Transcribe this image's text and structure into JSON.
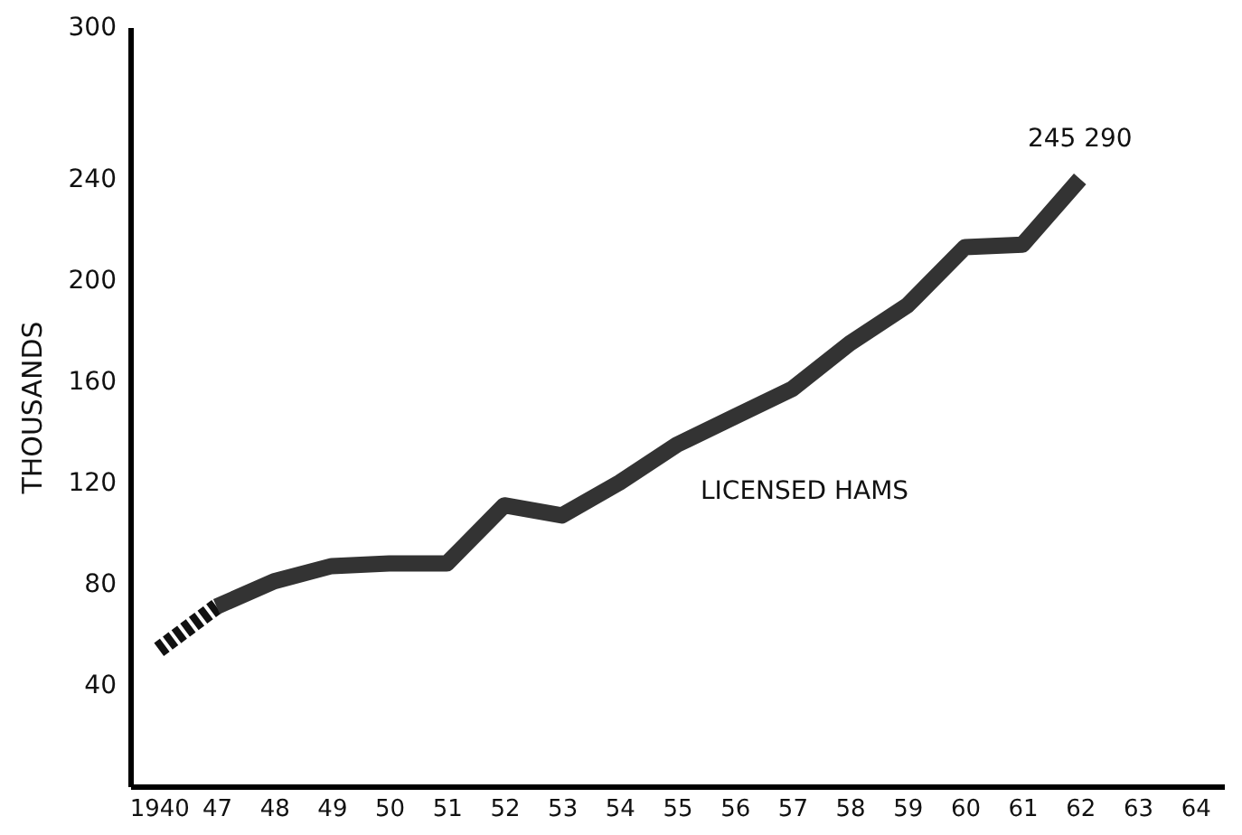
{
  "chart_data": {
    "type": "line",
    "ylabel": "THOUSANDS",
    "categories": [
      "1940",
      "47",
      "48",
      "49",
      "50",
      "51",
      "52",
      "53",
      "54",
      "55",
      "56",
      "57",
      "58",
      "59",
      "60",
      "61",
      "62",
      "63",
      "64"
    ],
    "series": [
      {
        "color": "#111111",
        "line_style": "dashed",
        "values": [
          54,
          71,
          null,
          null,
          null,
          null,
          null,
          null,
          null,
          null,
          null,
          null,
          null,
          null,
          null,
          null,
          null,
          null,
          null
        ]
      },
      {
        "name": "LICENSED HAMS",
        "color": "#333333",
        "line_style": "solid",
        "values": [
          null,
          71,
          81,
          87,
          88,
          88,
          111,
          107,
          120,
          135,
          146,
          157,
          175,
          190,
          213,
          214,
          240,
          null,
          null
        ]
      }
    ],
    "annotations": [
      "245 290"
    ],
    "ylim": [
      0,
      300
    ],
    "yticks": [
      40,
      80,
      120,
      160,
      200,
      240,
      300
    ],
    "grid": false,
    "marker": "none"
  }
}
